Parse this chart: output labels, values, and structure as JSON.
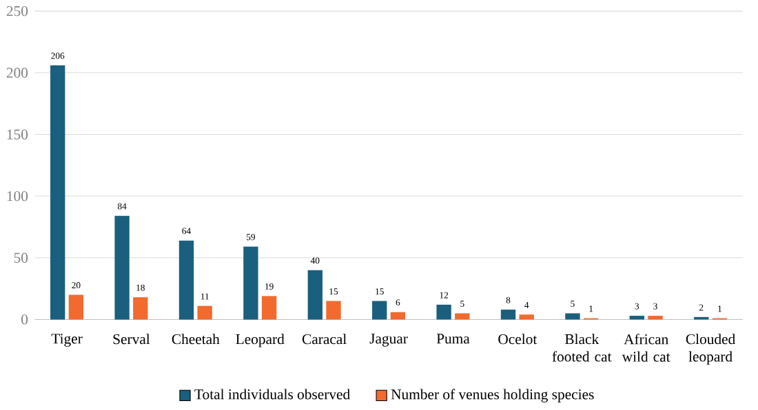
{
  "chart_data": {
    "type": "bar",
    "categories": [
      "Tiger",
      "Serval",
      "Cheetah",
      "Leopard",
      "Caracal",
      "Jaguar",
      "Puma",
      "Ocelot",
      "Black footed cat",
      "African wild cat",
      "Clouded leopard"
    ],
    "series": [
      {
        "name": "Total individuals observed",
        "color": "#1b5f7e",
        "values": [
          206,
          84,
          64,
          59,
          40,
          15,
          12,
          8,
          5,
          3,
          2
        ]
      },
      {
        "name": "Number of venues holding species",
        "color": "#f26a2e",
        "values": [
          20,
          18,
          11,
          19,
          15,
          6,
          5,
          4,
          1,
          3,
          1
        ]
      }
    ],
    "ylim": [
      0,
      250
    ],
    "yticks": [
      0,
      50,
      100,
      150,
      200,
      250
    ],
    "grid": "y",
    "legend": "bottom",
    "data_labels": true
  }
}
